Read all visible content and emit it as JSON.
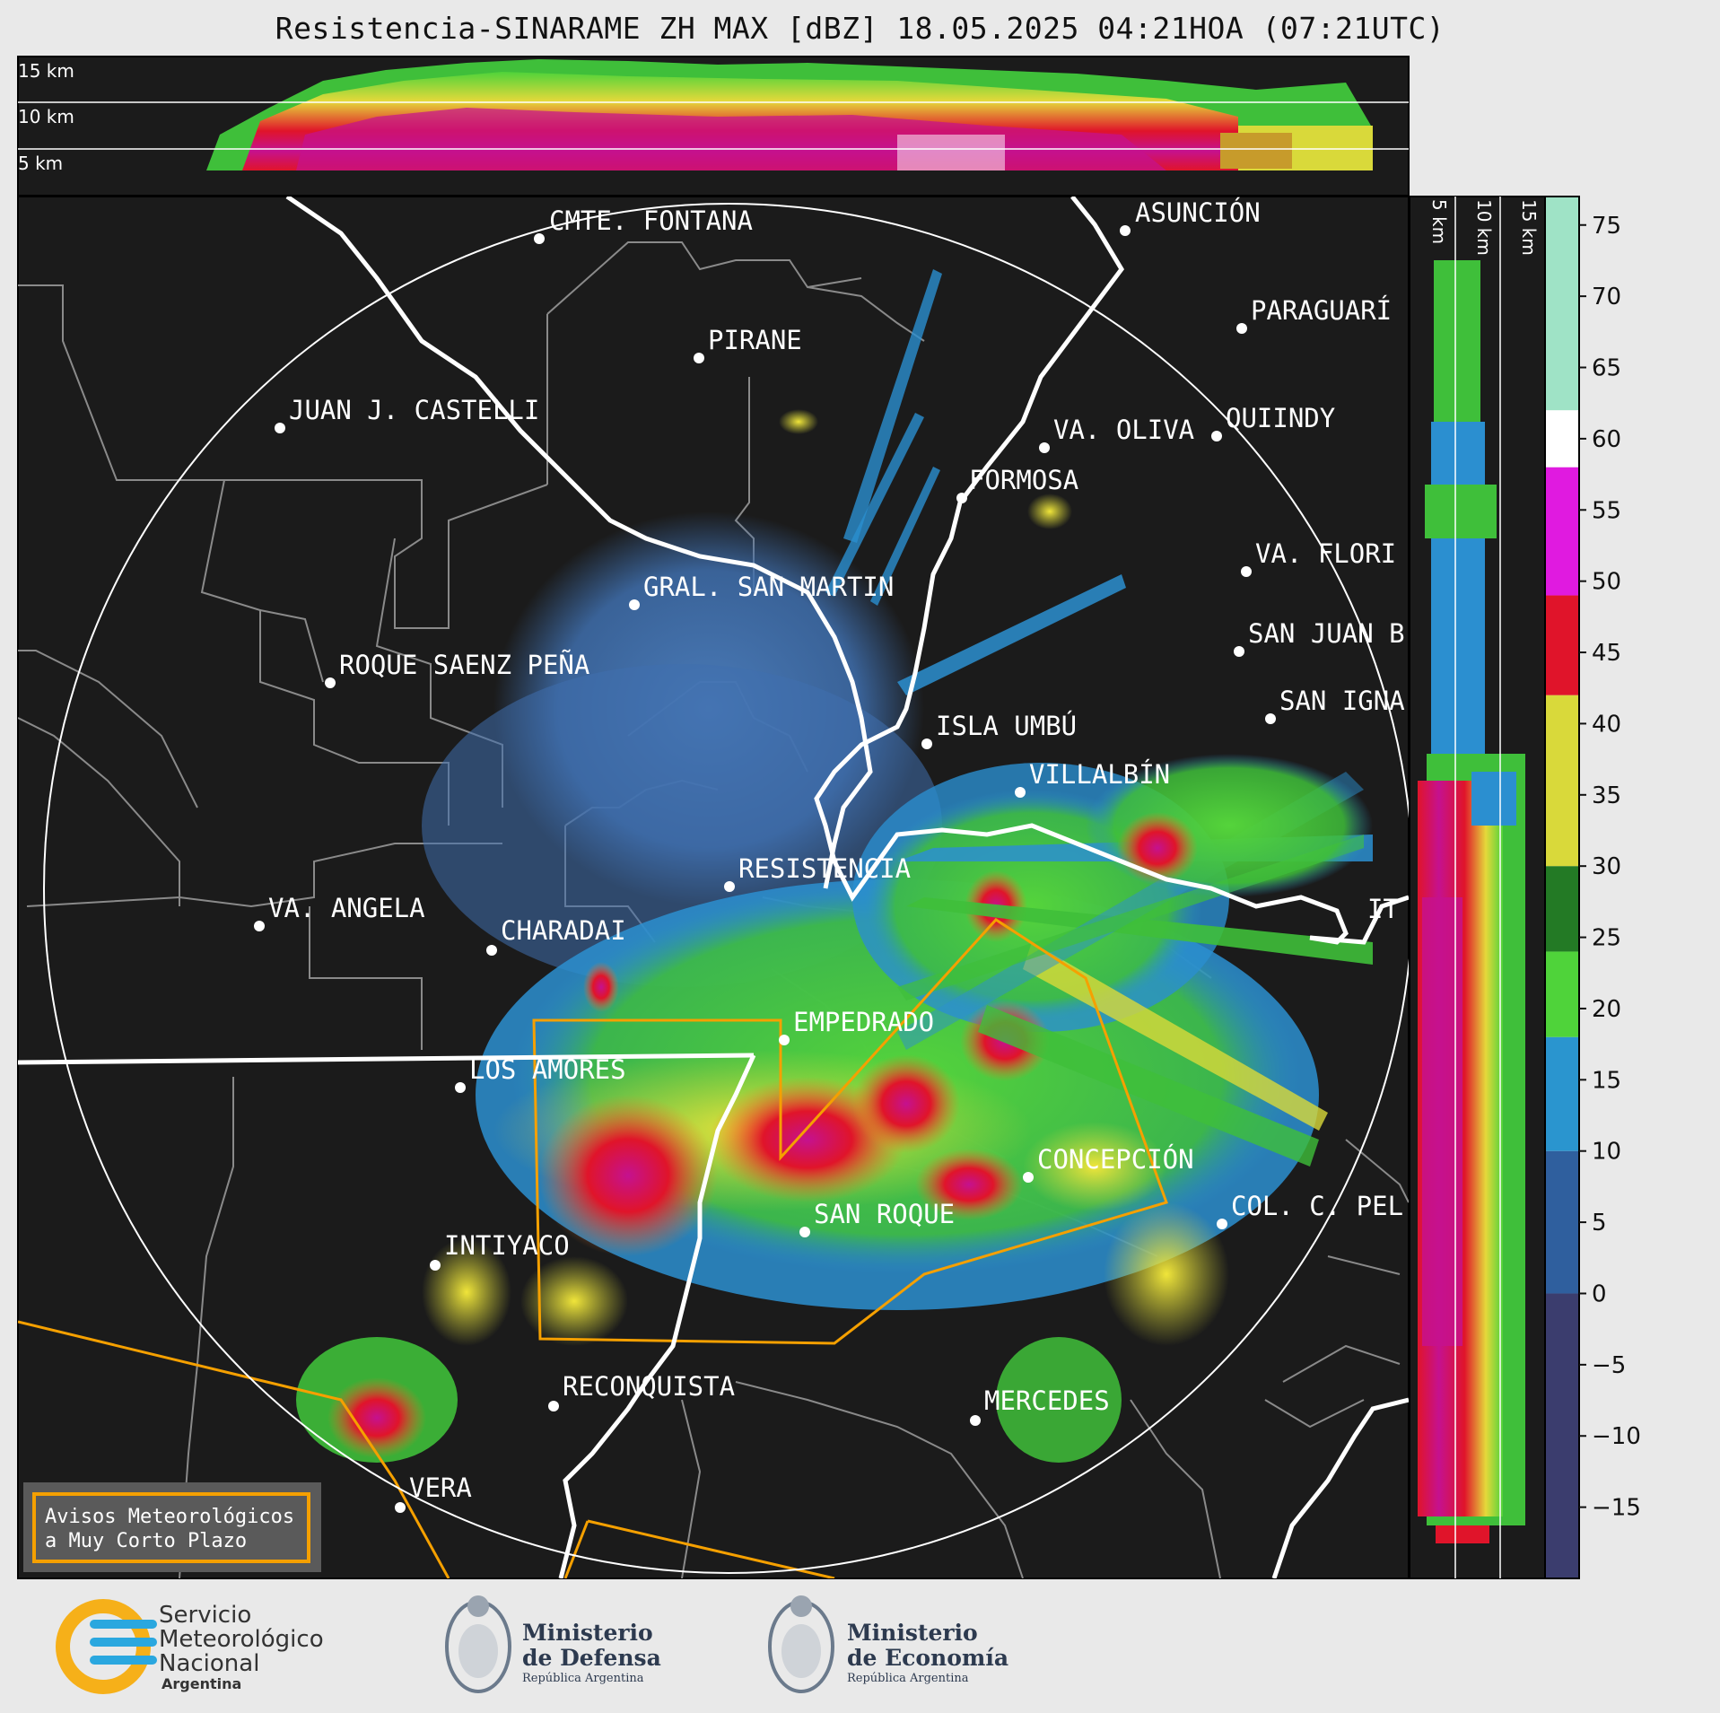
{
  "title": "Resistencia-SINARAME ZH MAX [dBZ] 18.05.2025 04:21HOA (07:21UTC)",
  "height_labels_top": [
    "15 km",
    "10 km",
    "5 km"
  ],
  "height_labels_side": [
    "5 km",
    "10 km",
    "15 km"
  ],
  "cities": [
    {
      "name": "CMTE. FONTANA"
    },
    {
      "name": "ASUNCIÓN"
    },
    {
      "name": "PARAGUARÍ"
    },
    {
      "name": "PIRANE"
    },
    {
      "name": "JUAN J. CASTELLI"
    },
    {
      "name": "VA. OLIVA"
    },
    {
      "name": "QUIINDY"
    },
    {
      "name": "FORMOSA"
    },
    {
      "name": "VA. FLORI"
    },
    {
      "name": "GRAL. SAN MARTIN"
    },
    {
      "name": "SAN JUAN B"
    },
    {
      "name": "ROQUE SAENZ PEÑA"
    },
    {
      "name": "SAN IGNA"
    },
    {
      "name": "ISLA UMBÚ"
    },
    {
      "name": "VILLALBÍN"
    },
    {
      "name": "RESISTENCIA"
    },
    {
      "name": "VA. ANGELA"
    },
    {
      "name": "CHARADAI"
    },
    {
      "name": "IT"
    },
    {
      "name": "EMPEDRADO"
    },
    {
      "name": "LOS AMORES"
    },
    {
      "name": "CONCEPCIÓN"
    },
    {
      "name": "SAN ROQUE"
    },
    {
      "name": "COL. C. PEL"
    },
    {
      "name": "INTIYACO"
    },
    {
      "name": "RECONQUISTA"
    },
    {
      "name": "MERCEDES"
    },
    {
      "name": "VERA"
    }
  ],
  "colorbar": {
    "unit": "dBZ",
    "min": -20,
    "max": 77,
    "ticks": [
      "75",
      "70",
      "65",
      "60",
      "55",
      "50",
      "45",
      "40",
      "35",
      "30",
      "25",
      "20",
      "15",
      "10",
      "5",
      "0",
      "−5",
      "−10",
      "−15"
    ],
    "bands": [
      {
        "from": -20,
        "to": 0,
        "color": "#3b3d6e"
      },
      {
        "from": 0,
        "to": 10,
        "color": "#2f5f9e"
      },
      {
        "from": 10,
        "to": 18,
        "color": "#2a95cf"
      },
      {
        "from": 18,
        "to": 24,
        "color": "#4fd33a"
      },
      {
        "from": 24,
        "to": 30,
        "color": "#237a25"
      },
      {
        "from": 30,
        "to": 42,
        "color": "#d9d93a"
      },
      {
        "from": 42,
        "to": 49,
        "color": "#e0142a"
      },
      {
        "from": 49,
        "to": 58,
        "color": "#e01ae0"
      },
      {
        "from": 58,
        "to": 62,
        "color": "#ffffff"
      },
      {
        "from": 62,
        "to": 77,
        "color": "#9fe3c6"
      }
    ]
  },
  "warning_box": {
    "line1": "Avisos Meteorológicos",
    "line2": "a Muy Corto Plazo"
  },
  "logos": {
    "smn": {
      "line1": "Servicio",
      "line2": "Meteorológico",
      "line3": "Nacional",
      "line4": "Argentina"
    },
    "defensa": {
      "line1": "Ministerio",
      "line2": "de Defensa",
      "line3": "República Argentina"
    },
    "economia": {
      "line1": "Ministerio",
      "line2": "de Economía",
      "line3": "República Argentina"
    }
  },
  "colors": {
    "background": "#1b1b1b",
    "warning": "#f5a000",
    "borders": "#8a8a8a",
    "rivers": "#ffffff"
  }
}
